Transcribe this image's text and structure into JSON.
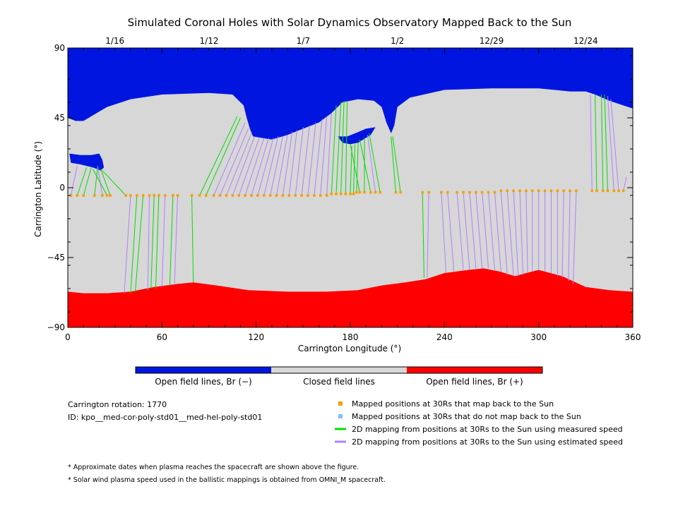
{
  "chart_data": {
    "type": "heatmap",
    "title": "Simulated Coronal Holes with Solar Dynamics Observatory Mapped Back to the Sun",
    "xlabel": "Carrington Longitude (°)",
    "ylabel": "Carrington Latitude (°)",
    "xlim": [
      0,
      360
    ],
    "ylim": [
      -90,
      90
    ],
    "x_ticks": [
      0,
      60,
      120,
      180,
      240,
      300,
      360
    ],
    "y_ticks": [
      {
        "value": 90,
        "label": "90"
      },
      {
        "value": 45,
        "label": "45"
      },
      {
        "value": 0,
        "label": "0"
      },
      {
        "value": -45,
        "label": "−45"
      },
      {
        "value": -90,
        "label": "−90"
      }
    ],
    "top_dates": [
      {
        "label": "1/16",
        "lon": 30
      },
      {
        "label": "1/12",
        "lon": 90
      },
      {
        "label": "1/7",
        "lon": 150
      },
      {
        "label": "1/2",
        "lon": 210
      },
      {
        "label": "12/29",
        "lon": 270
      },
      {
        "label": "12/24",
        "lon": 330
      }
    ],
    "colors": {
      "open_negative": "#0016e0",
      "closed": "#d7d7d7",
      "open_positive": "#ff0000",
      "mapped_orange": "#f5a000",
      "unmapped_blue": "#7fbfff",
      "measured_green": "#00dd00",
      "estimated_purple": "#b080ff"
    },
    "regions": {
      "north_open_boundary": [
        [
          0,
          45
        ],
        [
          5,
          43
        ],
        [
          10,
          43
        ],
        [
          15,
          46
        ],
        [
          25,
          52
        ],
        [
          40,
          57
        ],
        [
          60,
          60
        ],
        [
          90,
          61
        ],
        [
          105,
          60
        ],
        [
          112,
          53
        ],
        [
          114,
          45
        ],
        [
          116,
          38
        ],
        [
          118,
          33
        ],
        [
          130,
          31
        ],
        [
          140,
          34
        ],
        [
          150,
          38
        ],
        [
          160,
          42
        ],
        [
          168,
          48
        ],
        [
          175,
          55
        ],
        [
          185,
          57
        ],
        [
          195,
          56
        ],
        [
          200,
          52
        ],
        [
          203,
          42
        ],
        [
          206,
          35
        ],
        [
          208,
          40
        ],
        [
          210,
          52
        ],
        [
          218,
          58
        ],
        [
          240,
          63
        ],
        [
          270,
          64
        ],
        [
          300,
          64
        ],
        [
          320,
          62
        ],
        [
          330,
          62
        ],
        [
          336,
          60
        ],
        [
          345,
          56
        ],
        [
          360,
          51
        ]
      ],
      "south_open_boundary": [
        [
          0,
          -67
        ],
        [
          10,
          -68
        ],
        [
          25,
          -68
        ],
        [
          40,
          -67
        ],
        [
          55,
          -64
        ],
        [
          70,
          -62
        ],
        [
          80,
          -61
        ],
        [
          95,
          -63
        ],
        [
          115,
          -66
        ],
        [
          140,
          -67
        ],
        [
          165,
          -67
        ],
        [
          185,
          -66
        ],
        [
          200,
          -63
        ],
        [
          215,
          -61
        ],
        [
          228,
          -59
        ],
        [
          240,
          -55
        ],
        [
          255,
          -53
        ],
        [
          265,
          -52
        ],
        [
          275,
          -54
        ],
        [
          285,
          -57
        ],
        [
          292,
          -55
        ],
        [
          300,
          -53
        ],
        [
          315,
          -57
        ],
        [
          330,
          -64
        ],
        [
          345,
          -66
        ],
        [
          360,
          -67
        ]
      ],
      "islands_negative": [
        [
          [
            1,
            22
          ],
          [
            8,
            21
          ],
          [
            15,
            21
          ],
          [
            20,
            22
          ],
          [
            22,
            18
          ],
          [
            23,
            13
          ],
          [
            21,
            11
          ],
          [
            16,
            13
          ],
          [
            8,
            15
          ],
          [
            2,
            16
          ]
        ],
        [
          [
            172,
            33
          ],
          [
            178,
            33
          ],
          [
            183,
            35
          ],
          [
            190,
            38
          ],
          [
            196,
            39
          ],
          [
            193,
            34
          ],
          [
            185,
            29
          ],
          [
            180,
            28
          ],
          [
            175,
            29
          ]
        ],
        [
          [
            121,
            52
          ],
          [
            124,
            52
          ],
          [
            126,
            50
          ],
          [
            123,
            48
          ],
          [
            121,
            49
          ]
        ]
      ]
    },
    "mapping_lines": [
      {
        "lon0": 2,
        "lat0": -5,
        "lon1": 6,
        "lat1": 14,
        "c": "estimated_purple"
      },
      {
        "lon0": 6,
        "lat0": -5,
        "lon1": 12,
        "lat1": 13,
        "c": "measured_green"
      },
      {
        "lon0": 10,
        "lat0": -5,
        "lon1": 15,
        "lat1": 13,
        "c": "measured_green"
      },
      {
        "lon0": 17,
        "lat0": -5,
        "lon1": 19,
        "lat1": 13,
        "c": "measured_green"
      },
      {
        "lon0": 22,
        "lat0": -5,
        "lon1": 19,
        "lat1": 14,
        "c": "estimated_purple"
      },
      {
        "lon0": 25,
        "lat0": -5,
        "lon1": 16,
        "lat1": 12,
        "c": "measured_green"
      },
      {
        "lon0": 27,
        "lat0": -5,
        "lon1": 21,
        "lat1": 12,
        "c": "measured_green"
      },
      {
        "lon0": 37,
        "lat0": -5,
        "lon1": 22,
        "lat1": 11,
        "c": "measured_green"
      },
      {
        "lon0": 40,
        "lat0": -5,
        "lon1": 36,
        "lat1": -68,
        "c": "estimated_purple"
      },
      {
        "lon0": 44,
        "lat0": -5,
        "lon1": 40,
        "lat1": -68,
        "c": "measured_green"
      },
      {
        "lon0": 48,
        "lat0": -5,
        "lon1": 43,
        "lat1": -67,
        "c": "measured_green"
      },
      {
        "lon0": 52,
        "lat0": -5,
        "lon1": 51,
        "lat1": -66,
        "c": "estimated_purple"
      },
      {
        "lon0": 55,
        "lat0": -5,
        "lon1": 53,
        "lat1": -65,
        "c": "measured_green"
      },
      {
        "lon0": 58,
        "lat0": -5,
        "lon1": 56,
        "lat1": -65,
        "c": "measured_green"
      },
      {
        "lon0": 62,
        "lat0": -5,
        "lon1": 60,
        "lat1": -64,
        "c": "estimated_purple"
      },
      {
        "lon0": 67,
        "lat0": -5,
        "lon1": 65,
        "lat1": -63,
        "c": "measured_green"
      },
      {
        "lon0": 70,
        "lat0": -5,
        "lon1": 68,
        "lat1": -62,
        "c": "estimated_purple"
      },
      {
        "lon0": 79,
        "lat0": -5,
        "lon1": 80,
        "lat1": -61,
        "c": "measured_green"
      },
      {
        "lon0": 84,
        "lat0": -5,
        "lon1": 108,
        "lat1": 46,
        "c": "measured_green"
      },
      {
        "lon0": 88,
        "lat0": -5,
        "lon1": 110,
        "lat1": 45,
        "c": "measured_green"
      },
      {
        "lon0": 93,
        "lat0": -5,
        "lon1": 113,
        "lat1": 42,
        "c": "estimated_purple"
      },
      {
        "lon0": 97,
        "lat0": -5,
        "lon1": 115,
        "lat1": 38,
        "c": "estimated_purple"
      },
      {
        "lon0": 101,
        "lat0": -5,
        "lon1": 117,
        "lat1": 35,
        "c": "estimated_purple"
      },
      {
        "lon0": 105,
        "lat0": -5,
        "lon1": 119,
        "lat1": 33,
        "c": "estimated_purple"
      },
      {
        "lon0": 109,
        "lat0": -5,
        "lon1": 122,
        "lat1": 32,
        "c": "estimated_purple"
      },
      {
        "lon0": 113,
        "lat0": -5,
        "lon1": 125,
        "lat1": 32,
        "c": "estimated_purple"
      },
      {
        "lon0": 117,
        "lat0": -5,
        "lon1": 128,
        "lat1": 32,
        "c": "estimated_purple"
      },
      {
        "lon0": 121,
        "lat0": -5,
        "lon1": 131,
        "lat1": 32,
        "c": "estimated_purple"
      },
      {
        "lon0": 125,
        "lat0": -5,
        "lon1": 134,
        "lat1": 33,
        "c": "estimated_purple"
      },
      {
        "lon0": 129,
        "lat0": -5,
        "lon1": 137,
        "lat1": 33,
        "c": "estimated_purple"
      },
      {
        "lon0": 133,
        "lat0": -5,
        "lon1": 140,
        "lat1": 34,
        "c": "estimated_purple"
      },
      {
        "lon0": 137,
        "lat0": -5,
        "lon1": 143,
        "lat1": 36,
        "c": "estimated_purple"
      },
      {
        "lon0": 141,
        "lat0": -5,
        "lon1": 146,
        "lat1": 37,
        "c": "estimated_purple"
      },
      {
        "lon0": 145,
        "lat0": -5,
        "lon1": 150,
        "lat1": 39,
        "c": "estimated_purple"
      },
      {
        "lon0": 149,
        "lat0": -5,
        "lon1": 154,
        "lat1": 40,
        "c": "estimated_purple"
      },
      {
        "lon0": 153,
        "lat0": -5,
        "lon1": 158,
        "lat1": 42,
        "c": "estimated_purple"
      },
      {
        "lon0": 157,
        "lat0": -5,
        "lon1": 162,
        "lat1": 44,
        "c": "estimated_purple"
      },
      {
        "lon0": 161,
        "lat0": -5,
        "lon1": 165,
        "lat1": 46,
        "c": "estimated_purple"
      },
      {
        "lon0": 165,
        "lat0": -5,
        "lon1": 168,
        "lat1": 48,
        "c": "estimated_purple"
      },
      {
        "lon0": 168,
        "lat0": -4,
        "lon1": 171,
        "lat1": 53,
        "c": "measured_green"
      },
      {
        "lon0": 171,
        "lat0": -4,
        "lon1": 174,
        "lat1": 55,
        "c": "measured_green"
      },
      {
        "lon0": 174,
        "lat0": -4,
        "lon1": 176,
        "lat1": 56,
        "c": "measured_green"
      },
      {
        "lon0": 177,
        "lat0": -4,
        "lon1": 178,
        "lat1": 56,
        "c": "measured_green"
      },
      {
        "lon0": 180,
        "lat0": -4,
        "lon1": 181,
        "lat1": 27,
        "c": "measured_green"
      },
      {
        "lon0": 182,
        "lat0": -4,
        "lon1": 183,
        "lat1": 28,
        "c": "measured_green"
      },
      {
        "lon0": 184,
        "lat0": -3,
        "lon1": 185,
        "lat1": 29,
        "c": "measured_green"
      },
      {
        "lon0": 186,
        "lat0": -3,
        "lon1": 180,
        "lat1": 28,
        "c": "measured_green"
      },
      {
        "lon0": 189,
        "lat0": -3,
        "lon1": 189,
        "lat1": 32,
        "c": "measured_green"
      },
      {
        "lon0": 193,
        "lat0": -3,
        "lon1": 186,
        "lat1": 31,
        "c": "measured_green"
      },
      {
        "lon0": 196,
        "lat0": -3,
        "lon1": 191,
        "lat1": 34,
        "c": "estimated_purple"
      },
      {
        "lon0": 199,
        "lat0": -3,
        "lon1": 192,
        "lat1": 35,
        "c": "measured_green"
      },
      {
        "lon0": 209,
        "lat0": -3,
        "lon1": 206,
        "lat1": 33,
        "c": "measured_green"
      },
      {
        "lon0": 212,
        "lat0": -3,
        "lon1": 207,
        "lat1": 33,
        "c": "measured_green"
      },
      {
        "lon0": 226,
        "lat0": -3,
        "lon1": 227,
        "lat1": -58,
        "c": "measured_green"
      },
      {
        "lon0": 230,
        "lat0": -3,
        "lon1": 229,
        "lat1": -58,
        "c": "estimated_purple"
      },
      {
        "lon0": 238,
        "lat0": -3,
        "lon1": 241,
        "lat1": -55,
        "c": "estimated_purple"
      },
      {
        "lon0": 242,
        "lat0": -3,
        "lon1": 246,
        "lat1": -54,
        "c": "estimated_purple"
      },
      {
        "lon0": 248,
        "lat0": -3,
        "lon1": 252,
        "lat1": -53,
        "c": "estimated_purple"
      },
      {
        "lon0": 252,
        "lat0": -3,
        "lon1": 256,
        "lat1": -53,
        "c": "estimated_purple"
      },
      {
        "lon0": 256,
        "lat0": -3,
        "lon1": 260,
        "lat1": -52,
        "c": "estimated_purple"
      },
      {
        "lon0": 260,
        "lat0": -3,
        "lon1": 264,
        "lat1": -52,
        "c": "estimated_purple"
      },
      {
        "lon0": 264,
        "lat0": -3,
        "lon1": 268,
        "lat1": -52,
        "c": "estimated_purple"
      },
      {
        "lon0": 268,
        "lat0": -3,
        "lon1": 272,
        "lat1": -53,
        "c": "estimated_purple"
      },
      {
        "lon0": 272,
        "lat0": -3,
        "lon1": 276,
        "lat1": -54,
        "c": "estimated_purple"
      },
      {
        "lon0": 276,
        "lat0": -2,
        "lon1": 280,
        "lat1": -56,
        "c": "estimated_purple"
      },
      {
        "lon0": 280,
        "lat0": -2,
        "lon1": 284,
        "lat1": -57,
        "c": "estimated_purple"
      },
      {
        "lon0": 284,
        "lat0": -2,
        "lon1": 287,
        "lat1": -57,
        "c": "estimated_purple"
      },
      {
        "lon0": 288,
        "lat0": -2,
        "lon1": 290,
        "lat1": -56,
        "c": "estimated_purple"
      },
      {
        "lon0": 292,
        "lat0": -2,
        "lon1": 293,
        "lat1": -55,
        "c": "estimated_purple"
      },
      {
        "lon0": 296,
        "lat0": -2,
        "lon1": 296,
        "lat1": -54,
        "c": "estimated_purple"
      },
      {
        "lon0": 300,
        "lat0": -2,
        "lon1": 300,
        "lat1": -53,
        "c": "estimated_purple"
      },
      {
        "lon0": 304,
        "lat0": -2,
        "lon1": 304,
        "lat1": -54,
        "c": "estimated_purple"
      },
      {
        "lon0": 308,
        "lat0": -2,
        "lon1": 308,
        "lat1": -55,
        "c": "estimated_purple"
      },
      {
        "lon0": 312,
        "lat0": -2,
        "lon1": 312,
        "lat1": -57,
        "c": "estimated_purple"
      },
      {
        "lon0": 316,
        "lat0": -2,
        "lon1": 315,
        "lat1": -58,
        "c": "estimated_purple"
      },
      {
        "lon0": 320,
        "lat0": -2,
        "lon1": 319,
        "lat1": -60,
        "c": "estimated_purple"
      },
      {
        "lon0": 324,
        "lat0": -2,
        "lon1": 322,
        "lat1": -62,
        "c": "estimated_purple"
      },
      {
        "lon0": 334,
        "lat0": -2,
        "lon1": 333,
        "lat1": 60,
        "c": "estimated_purple"
      },
      {
        "lon0": 337,
        "lat0": -2,
        "lon1": 336,
        "lat1": 60,
        "c": "measured_green"
      },
      {
        "lon0": 341,
        "lat0": -2,
        "lon1": 340,
        "lat1": 60,
        "c": "measured_green"
      },
      {
        "lon0": 344,
        "lat0": -2,
        "lon1": 342,
        "lat1": 60,
        "c": "measured_green"
      },
      {
        "lon0": 348,
        "lat0": -2,
        "lon1": 344,
        "lat1": 59,
        "c": "estimated_purple"
      },
      {
        "lon0": 351,
        "lat0": -2,
        "lon1": 346,
        "lat1": 57,
        "c": "estimated_purple"
      },
      {
        "lon0": 354,
        "lat0": -2,
        "lon1": 356,
        "lat1": 7,
        "c": "estimated_purple"
      }
    ],
    "legend_bar": {
      "labels": [
        "Open field lines, Br (−)",
        "Closed field lines",
        "Open field lines, Br (+)"
      ]
    },
    "info": {
      "rotation": "Carrington rotation: 1770",
      "id": "ID: kpo__med-cor-poly-std01__med-hel-poly-std01"
    },
    "legend_items": [
      {
        "label": "Mapped positions at 30Rs that map back to the Sun",
        "kind": "square",
        "color": "mapped_orange"
      },
      {
        "label": "Mapped positions at 30Rs that do not map back to the Sun",
        "kind": "square",
        "color": "unmapped_blue"
      },
      {
        "label": "2D mapping from positions at 30Rs to the Sun using measured speed",
        "kind": "line",
        "color": "measured_green"
      },
      {
        "label": "2D mapping from positions at 30Rs to the Sun using estimated speed",
        "kind": "line",
        "color": "estimated_purple"
      }
    ],
    "footnotes": [
      "* Approximate dates when plasma reaches the spacecraft are shown above the figure.",
      "* Solar wind plasma speed used in the ballistic mappings is obtained from OMNI_M spacecraft."
    ]
  }
}
